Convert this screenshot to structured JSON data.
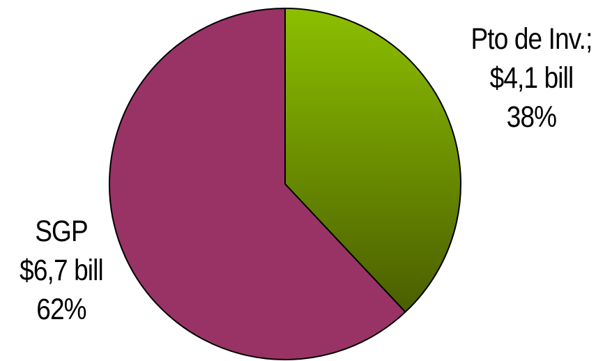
{
  "chart_data": {
    "type": "pie",
    "title": "",
    "slices": [
      {
        "name": "Pto de Inv.;",
        "amount": "$4,1 bill",
        "percent_label": "38%",
        "value": 4.1,
        "percent": 38,
        "color": "#8cbf00",
        "color_dark": "#4a5e00"
      },
      {
        "name": "SGP",
        "amount": "$6,7 bill",
        "percent_label": "62%",
        "value": 6.7,
        "percent": 62,
        "color": "#993366"
      }
    ],
    "start_angle": "12 o'clock",
    "direction": "clockwise",
    "legend": "none"
  }
}
